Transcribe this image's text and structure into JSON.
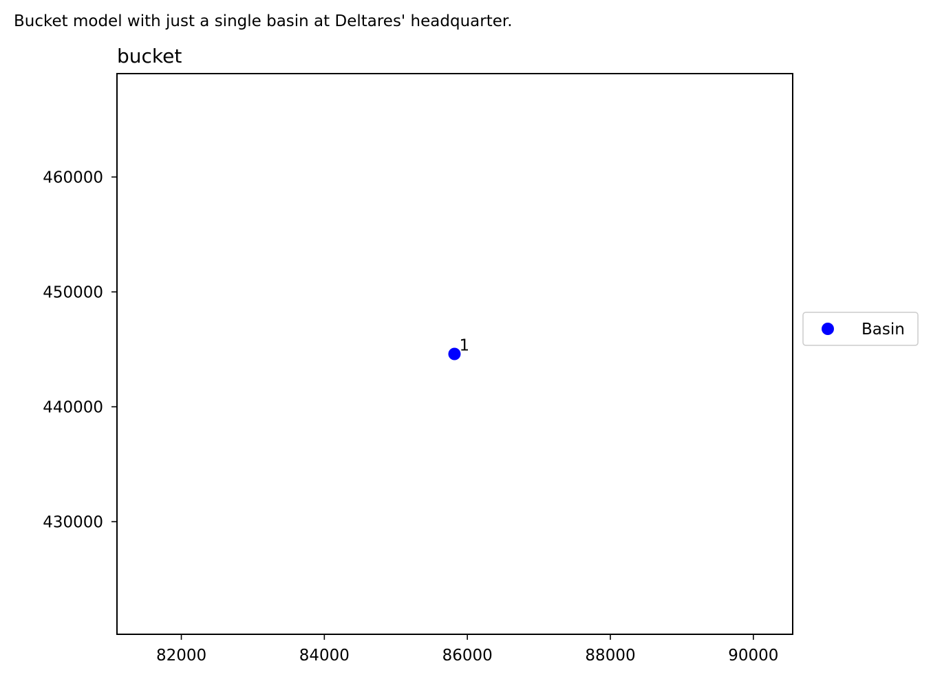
{
  "caption": "Bucket model with just a single basin at Deltares' headquarter.",
  "chart_data": {
    "type": "scatter",
    "title": "bucket",
    "xlabel": "",
    "ylabel": "",
    "xlim": [
      81100,
      90550
    ],
    "ylim": [
      420200,
      469000
    ],
    "xticks": [
      82000,
      84000,
      86000,
      88000,
      90000
    ],
    "yticks": [
      430000,
      440000,
      450000,
      460000
    ],
    "grid": false,
    "legend_placement": "center-right-outside",
    "series": [
      {
        "name": "Basin",
        "color": "#0000ff",
        "marker": "circle",
        "points": [
          {
            "x": 85820,
            "y": 444600,
            "label": "1"
          }
        ]
      }
    ]
  }
}
